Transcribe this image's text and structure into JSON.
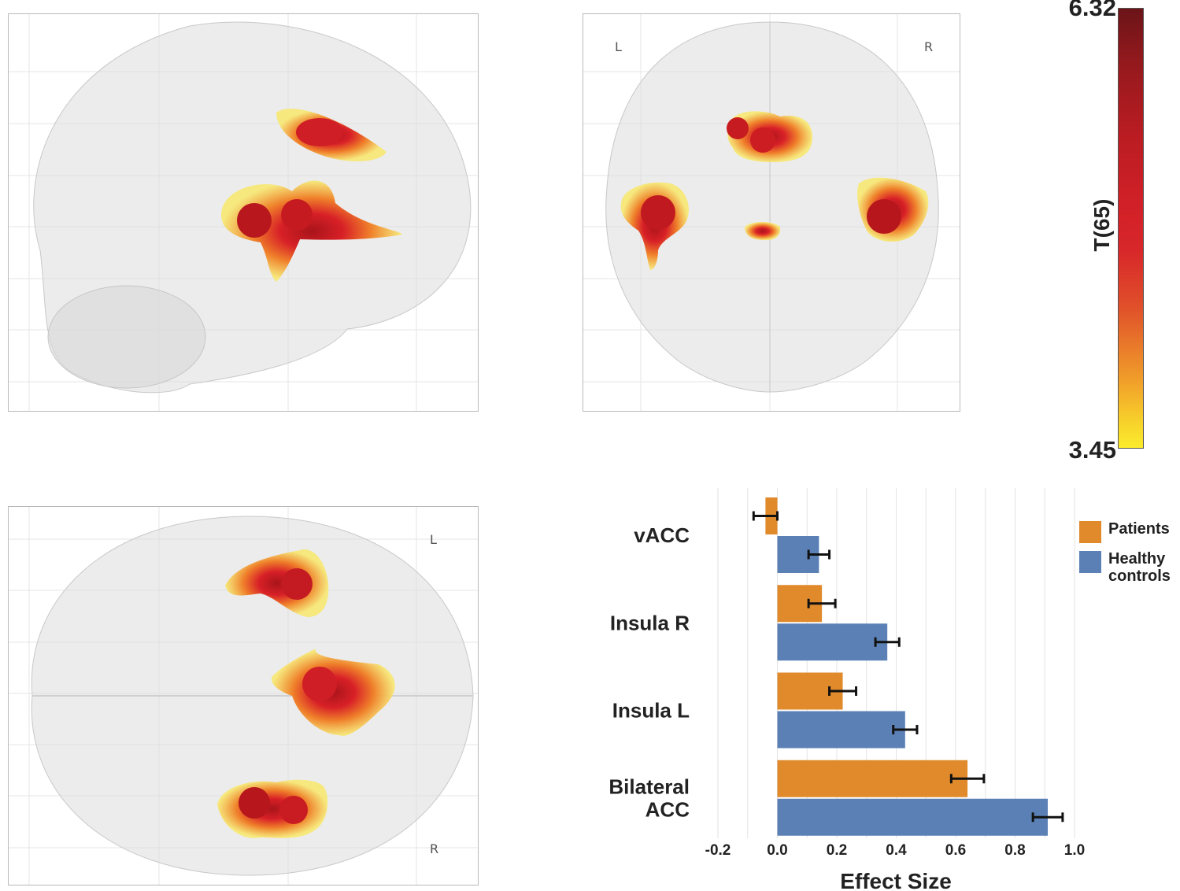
{
  "views": {
    "coronal": {
      "left_label": "L",
      "right_label": "R"
    },
    "axial": {
      "left_label": "L",
      "right_label": "R"
    }
  },
  "colorbar": {
    "max": "6.32",
    "min": "3.45",
    "label": "T(65)"
  },
  "colors": {
    "patients": "#e08a2c",
    "healthy_controls": "#5b80b5",
    "cmap_low": "#fbec2c",
    "cmap_mid": "#d22028",
    "cmap_high": "#6b1418"
  },
  "chart_data": {
    "type": "bar",
    "orientation": "horizontal",
    "categories": [
      "vACC",
      "Insula R",
      "Insula L",
      "Bilateral ACC"
    ],
    "category_display": [
      [
        "vACC"
      ],
      [
        "Insula R"
      ],
      [
        "Insula L"
      ],
      [
        "Bilateral",
        "ACC"
      ]
    ],
    "series": [
      {
        "name": "Patients",
        "values": [
          -0.04,
          0.15,
          0.22,
          0.64
        ],
        "errors": [
          0.04,
          0.045,
          0.045,
          0.055
        ]
      },
      {
        "name": "Healthy controls",
        "values": [
          0.14,
          0.37,
          0.43,
          0.91
        ],
        "errors": [
          0.035,
          0.04,
          0.04,
          0.05
        ]
      }
    ],
    "legend": {
      "position": "right",
      "entries": [
        [
          "Patients"
        ],
        [
          "Healthy",
          "controls"
        ]
      ]
    },
    "xlabel": "Effect Size",
    "xlim": [
      -0.2,
      1.0
    ],
    "xticks": [
      "-0.2",
      "0.0",
      "0.2",
      "0.4",
      "0.6",
      "0.8",
      "1.0"
    ],
    "grid": true
  }
}
